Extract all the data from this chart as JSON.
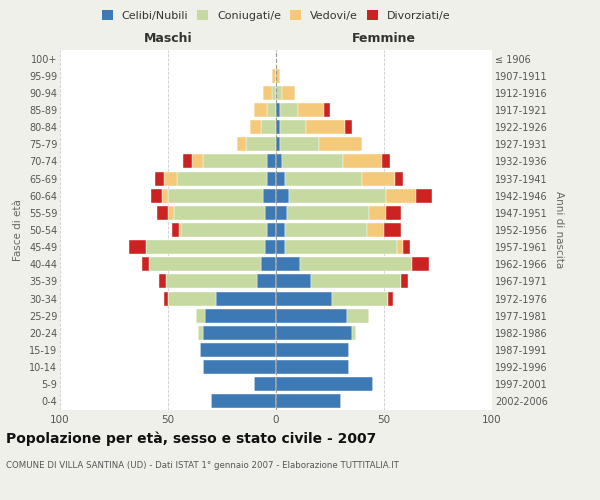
{
  "age_groups": [
    "0-4",
    "5-9",
    "10-14",
    "15-19",
    "20-24",
    "25-29",
    "30-34",
    "35-39",
    "40-44",
    "45-49",
    "50-54",
    "55-59",
    "60-64",
    "65-69",
    "70-74",
    "75-79",
    "80-84",
    "85-89",
    "90-94",
    "95-99",
    "100+"
  ],
  "birth_years": [
    "2002-2006",
    "1997-2001",
    "1992-1996",
    "1987-1991",
    "1982-1986",
    "1977-1981",
    "1972-1976",
    "1967-1971",
    "1962-1966",
    "1957-1961",
    "1952-1956",
    "1947-1951",
    "1942-1946",
    "1937-1941",
    "1932-1936",
    "1927-1931",
    "1922-1926",
    "1917-1921",
    "1912-1916",
    "1907-1911",
    "≤ 1906"
  ],
  "colors": {
    "celibi": "#3d7ab5",
    "coniugati": "#c5d9a0",
    "vedovi": "#f5c97a",
    "divorziati": "#cc2222"
  },
  "males": {
    "celibi": [
      30,
      10,
      34,
      35,
      34,
      33,
      28,
      9,
      7,
      5,
      4,
      5,
      6,
      4,
      4,
      0,
      0,
      0,
      0,
      0,
      0
    ],
    "coniugati": [
      0,
      0,
      0,
      0,
      2,
      4,
      22,
      42,
      52,
      55,
      40,
      42,
      44,
      42,
      30,
      14,
      7,
      4,
      2,
      0,
      0
    ],
    "vedovi": [
      0,
      0,
      0,
      0,
      0,
      0,
      0,
      0,
      0,
      0,
      1,
      3,
      3,
      6,
      5,
      4,
      5,
      6,
      4,
      2,
      0
    ],
    "divorziati": [
      0,
      0,
      0,
      0,
      0,
      0,
      2,
      3,
      3,
      8,
      3,
      5,
      5,
      4,
      4,
      0,
      0,
      0,
      0,
      0,
      0
    ]
  },
  "females": {
    "celibi": [
      30,
      45,
      34,
      34,
      35,
      33,
      26,
      16,
      11,
      4,
      4,
      5,
      6,
      4,
      3,
      2,
      2,
      2,
      0,
      0,
      0
    ],
    "coniugati": [
      0,
      0,
      0,
      0,
      2,
      10,
      26,
      42,
      52,
      52,
      38,
      38,
      45,
      36,
      28,
      18,
      12,
      8,
      3,
      0,
      0
    ],
    "vedovi": [
      0,
      0,
      0,
      0,
      0,
      0,
      0,
      0,
      0,
      3,
      8,
      8,
      14,
      15,
      18,
      20,
      18,
      12,
      6,
      2,
      0
    ],
    "divorziati": [
      0,
      0,
      0,
      0,
      0,
      0,
      2,
      3,
      8,
      3,
      8,
      7,
      7,
      4,
      4,
      0,
      3,
      3,
      0,
      0,
      0
    ]
  },
  "xlim": 100,
  "title": "Popolazione per età, sesso e stato civile - 2007",
  "subtitle": "COMUNE DI VILLA SANTINA (UD) - Dati ISTAT 1° gennaio 2007 - Elaborazione TUTTITALIA.IT",
  "ylabel_left": "Fasce di età",
  "ylabel_right": "Anni di nascita",
  "xlabel_left": "Maschi",
  "xlabel_right": "Femmine",
  "bg_color": "#f0f0eb",
  "plot_bg_color": "#ffffff",
  "grid_color": "#cccccc"
}
